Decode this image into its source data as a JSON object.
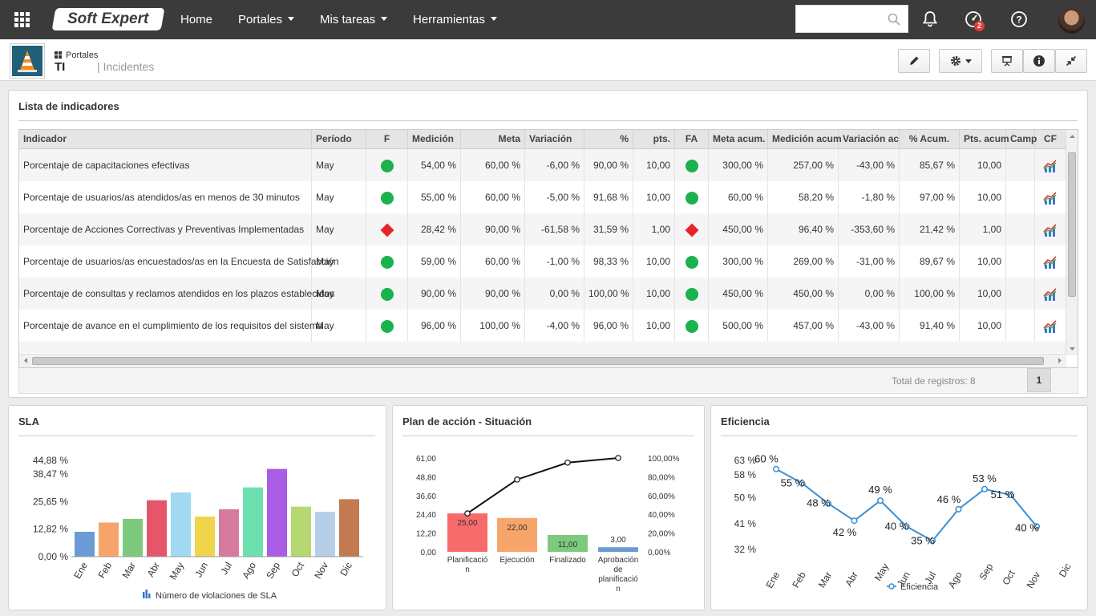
{
  "topbar": {
    "logo": "Soft Expert",
    "nav": [
      {
        "label": "Home",
        "dropdown": false
      },
      {
        "label": "Portales",
        "dropdown": true
      },
      {
        "label": "Mis tareas",
        "dropdown": true
      },
      {
        "label": "Herramientas",
        "dropdown": true
      }
    ],
    "search_placeholder": "",
    "notifications_badge": "2"
  },
  "breadcrumb": {
    "parent": "Portales",
    "current": "TI",
    "section": "| Incidentes"
  },
  "indicators_panel": {
    "title": "Lista de indicadores",
    "columns": [
      "Indicador",
      "Período",
      "F",
      "Medición",
      "Meta",
      "Variación",
      "%",
      "pts.",
      "FA",
      "Meta acum.",
      "Medición acum",
      "Variación ac",
      "% Acum.",
      "Pts. acum",
      "Camp",
      "CF"
    ],
    "rows": [
      {
        "indicador": "Porcentaje de capacitaciones efectivas",
        "periodo": "May",
        "f": "green",
        "medicion": "54,00 %",
        "meta": "60,00 %",
        "variacion": "-6,00 %",
        "pct": "90,00 %",
        "pts": "10,00",
        "fa": "green",
        "meta_acum": "300,00 %",
        "medicion_acum": "257,00 %",
        "variacion_acum": "-43,00 %",
        "pct_acum": "85,67 %",
        "pts_acum": "10,00"
      },
      {
        "indicador": "Porcentaje de usuarios/as atendidos/as en menos de 30 minutos",
        "periodo": "May",
        "f": "green",
        "medicion": "55,00 %",
        "meta": "60,00 %",
        "variacion": "-5,00 %",
        "pct": "91,68 %",
        "pts": "10,00",
        "fa": "green",
        "meta_acum": "60,00 %",
        "medicion_acum": "58,20 %",
        "variacion_acum": "-1,80 %",
        "pct_acum": "97,00 %",
        "pts_acum": "10,00"
      },
      {
        "indicador": "Porcentaje de Acciones Correctivas y Preventivas Implementadas",
        "periodo": "May",
        "f": "red",
        "medicion": "28,42 %",
        "meta": "90,00 %",
        "variacion": "-61,58 %",
        "pct": "31,59 %",
        "pts": "1,00",
        "fa": "red",
        "meta_acum": "450,00 %",
        "medicion_acum": "96,40 %",
        "variacion_acum": "-353,60 %",
        "pct_acum": "21,42 %",
        "pts_acum": "1,00"
      },
      {
        "indicador": "Porcentaje de usuarios/as encuestados/as en la Encuesta de Satisfacción",
        "periodo": "May",
        "f": "green",
        "medicion": "59,00 %",
        "meta": "60,00 %",
        "variacion": "-1,00 %",
        "pct": "98,33 %",
        "pts": "10,00",
        "fa": "green",
        "meta_acum": "300,00 %",
        "medicion_acum": "269,00 %",
        "variacion_acum": "-31,00 %",
        "pct_acum": "89,67 %",
        "pts_acum": "10,00"
      },
      {
        "indicador": "Porcentaje de consultas y reclamos atendidos en los plazos establecidos",
        "periodo": "May",
        "f": "green",
        "medicion": "90,00 %",
        "meta": "90,00 %",
        "variacion": "0,00 %",
        "pct": "100,00 %",
        "pts": "10,00",
        "fa": "green",
        "meta_acum": "450,00 %",
        "medicion_acum": "450,00 %",
        "variacion_acum": "0,00 %",
        "pct_acum": "100,00 %",
        "pts_acum": "10,00"
      },
      {
        "indicador": "Porcentaje de avance en el cumplimiento de los requisitos del sistema",
        "periodo": "May",
        "f": "green",
        "medicion": "96,00 %",
        "meta": "100,00 %",
        "variacion": "-4,00 %",
        "pct": "96,00 %",
        "pts": "10,00",
        "fa": "green",
        "meta_acum": "500,00 %",
        "medicion_acum": "457,00 %",
        "variacion_acum": "-43,00 %",
        "pct_acum": "91,40 %",
        "pts_acum": "10,00"
      }
    ],
    "total_label": "Total de registros: 8",
    "page": "1"
  },
  "chart_data": [
    {
      "type": "bar",
      "title": "SLA",
      "categories": [
        "Ene",
        "Feb",
        "Mar",
        "Abr",
        "May",
        "Jun",
        "Jul",
        "Ago",
        "Sep",
        "Oct",
        "Nov",
        "Dic"
      ],
      "series": [
        {
          "name": "Número de violaciones de SLA",
          "values": [
            11.6,
            15.9,
            17.6,
            26.3,
            29.9,
            18.7,
            22.1,
            32.3,
            40.9,
            23.3,
            20.9,
            26.8
          ]
        }
      ],
      "colors": [
        "#6b9bd2",
        "#f7a46b",
        "#7dc97d",
        "#e5566a",
        "#9fd9f2",
        "#f0d44a",
        "#d77b9e",
        "#6ee0b0",
        "#a95ce6",
        "#b6d870",
        "#b6cfe8",
        "#c47a50"
      ],
      "yticks": [
        "0,00 %",
        "12,82 %",
        "25,65 %",
        "38,47 %",
        "44,88 %"
      ],
      "ytick_values": [
        0,
        12.82,
        25.65,
        38.47,
        44.88
      ],
      "ylim": [
        0,
        44.88
      ]
    },
    {
      "type": "bar",
      "title": "Plan de acción - Situación",
      "categories": [
        "Planificación",
        "Ejecución",
        "Finalizado",
        "Aprobación de planificación"
      ],
      "values": [
        25.0,
        22.0,
        11.0,
        3.0
      ],
      "value_labels": [
        "25,00",
        "22,00",
        "11,00",
        "3,00"
      ],
      "colors": [
        "#f86b6b",
        "#f8a56b",
        "#7dc97d",
        "#6b9bd2"
      ],
      "cumulative_pct": [
        40.98,
        77.05,
        95.08,
        100.0
      ],
      "yticks_left": [
        "0,00",
        "12,20",
        "24,40",
        "36,60",
        "48,80",
        "61,00"
      ],
      "yticks_left_values": [
        0,
        12.2,
        24.4,
        36.6,
        48.8,
        61.0
      ],
      "yticks_right": [
        "0,00%",
        "20,00%",
        "40,00%",
        "60,00%",
        "80,00%",
        "100,00%"
      ],
      "ylim": [
        0,
        61.0
      ]
    },
    {
      "type": "line",
      "title": "Eficiencia",
      "categories": [
        "Ene",
        "Feb",
        "Mar",
        "Abr",
        "May",
        "Jun",
        "Jul",
        "Ago",
        "Sep",
        "Oct",
        "Nov",
        "Dic"
      ],
      "series": [
        {
          "name": "Eficiencia",
          "values": [
            60,
            55,
            48,
            42,
            49,
            40,
            35,
            46,
            53,
            51,
            40,
            null
          ]
        }
      ],
      "point_labels": [
        "60 %",
        "55 %",
        "48 %",
        "42 %",
        "49 %",
        "40 %",
        "35 %",
        "46 %",
        "53 %",
        "51 %",
        "40 %",
        ""
      ],
      "yticks": [
        "32 %",
        "41 %",
        "50 %",
        "58 %",
        "63 %"
      ],
      "ytick_values": [
        32,
        41,
        50,
        58,
        63
      ],
      "ylim": [
        32,
        63
      ],
      "color": "#3b8fd1"
    }
  ]
}
